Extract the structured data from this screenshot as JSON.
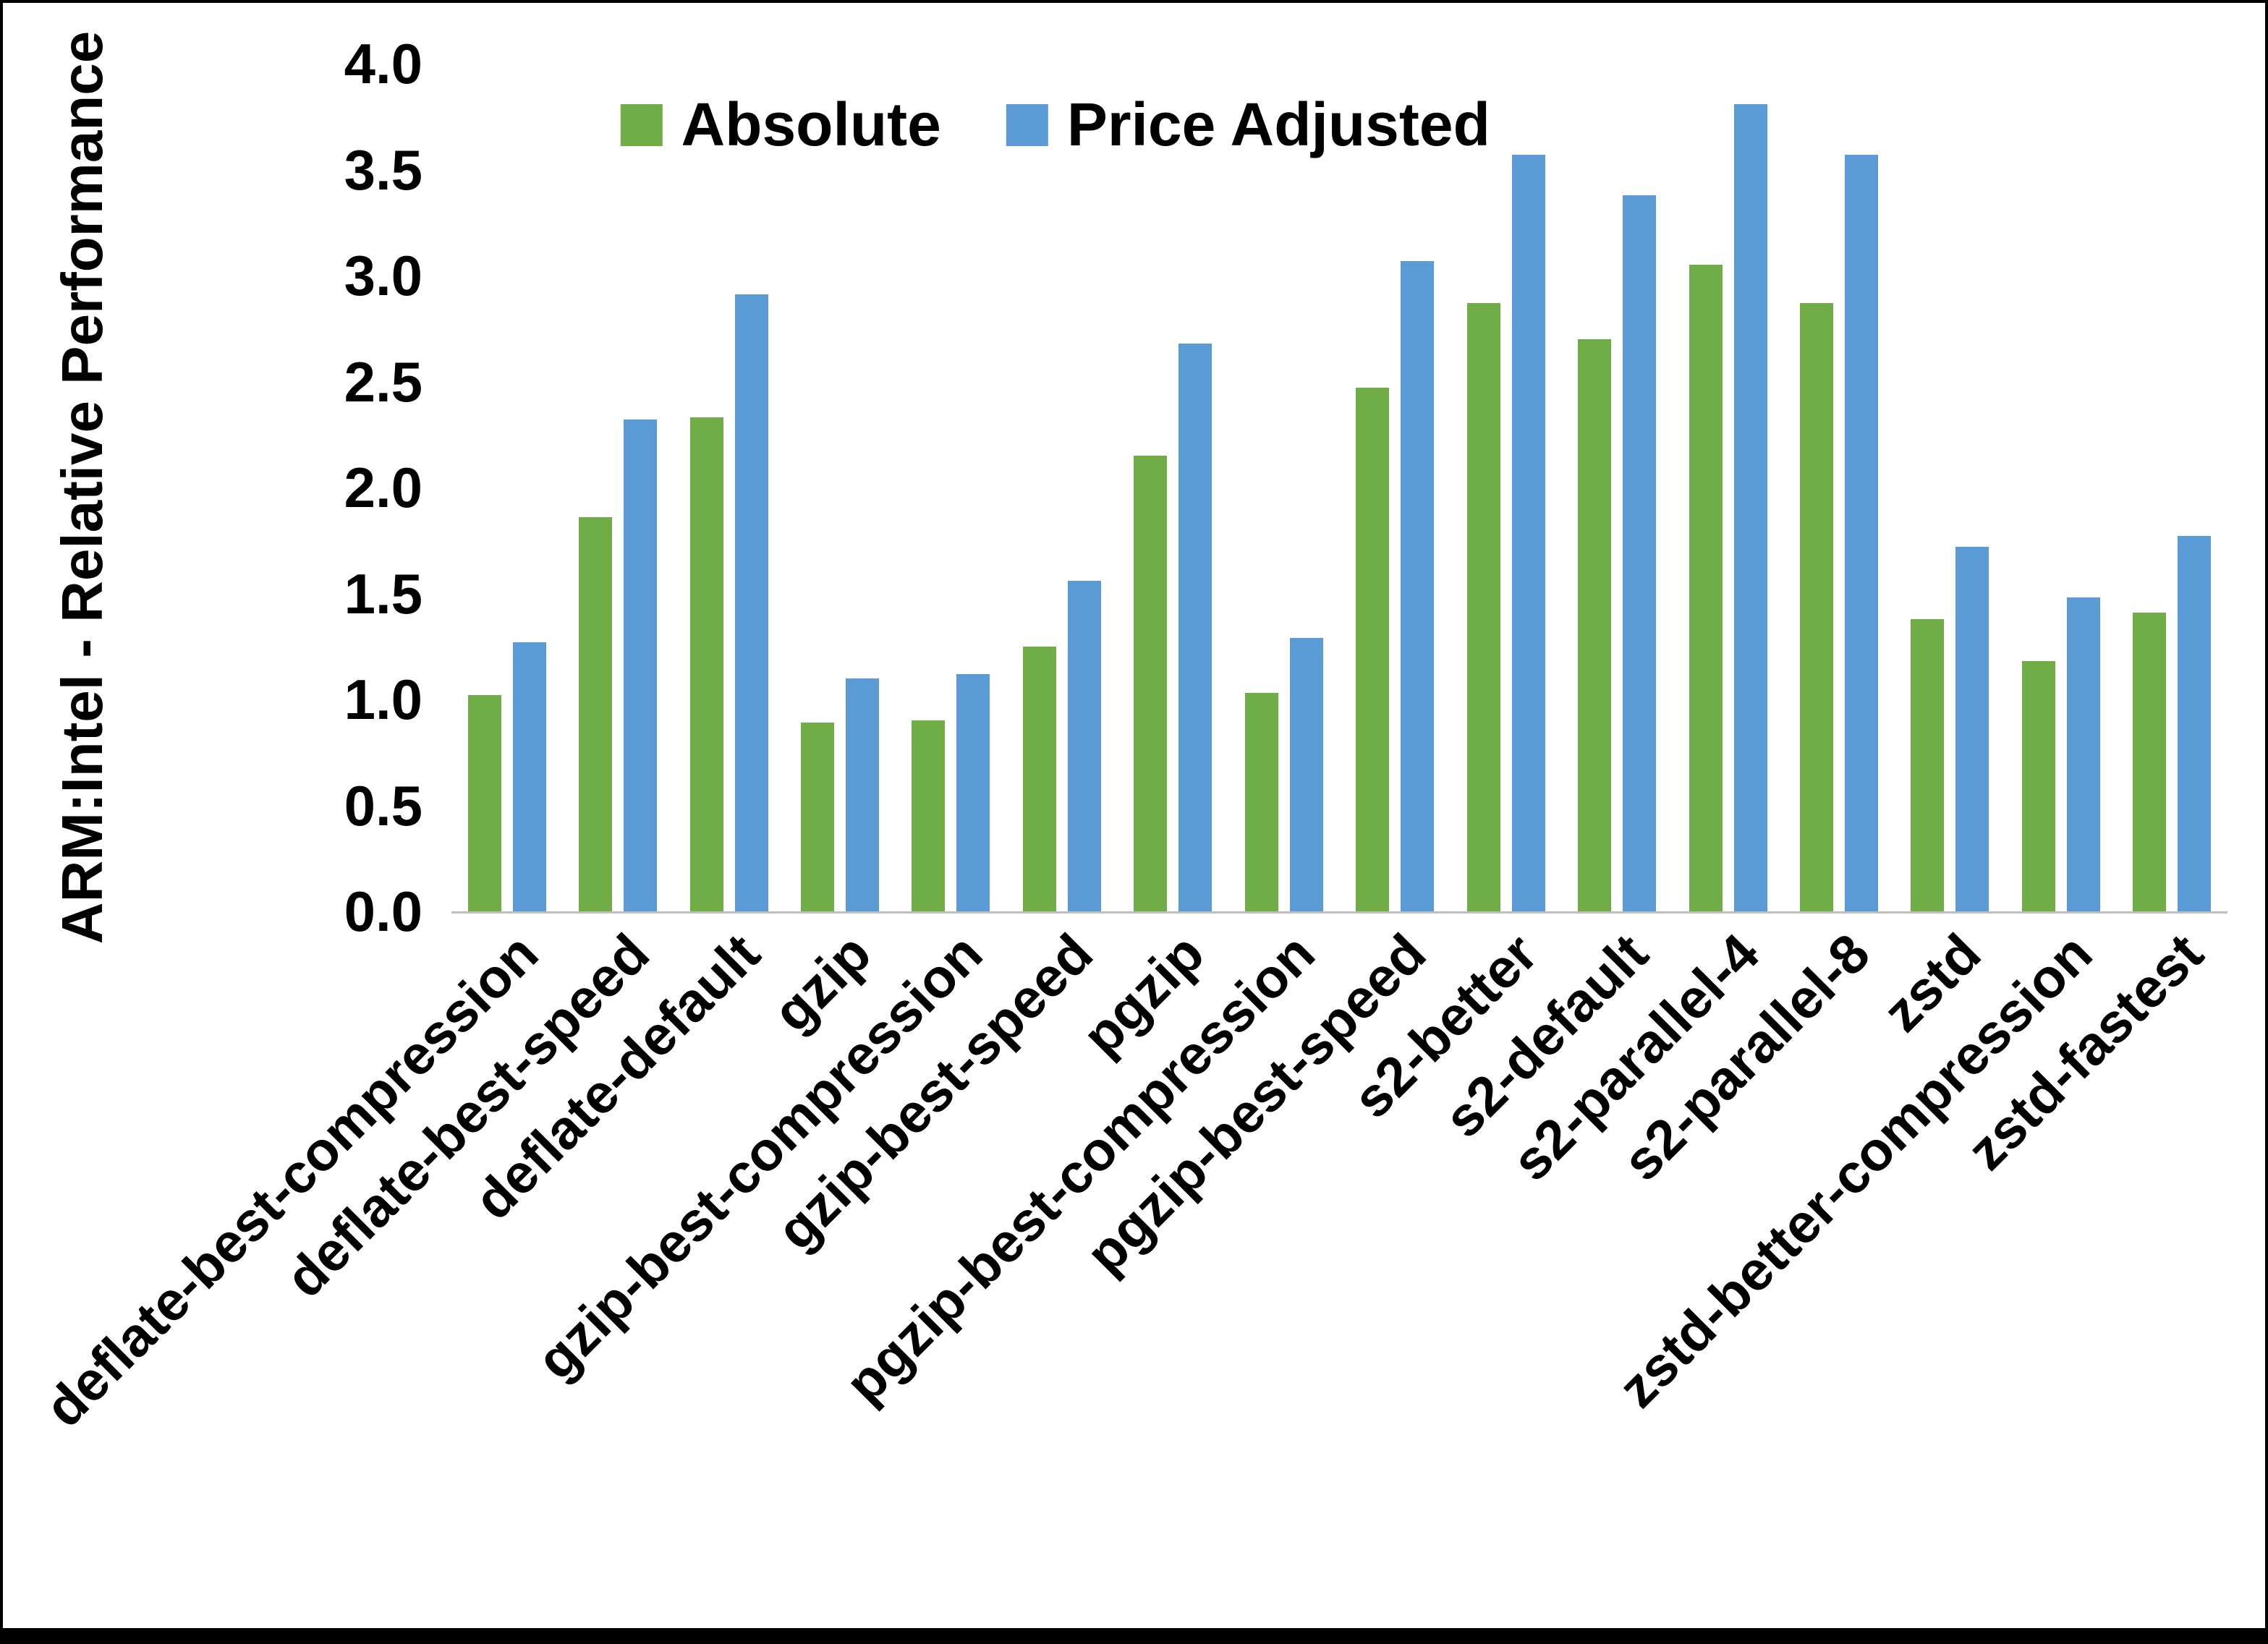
{
  "chart_data": {
    "type": "bar",
    "title": "",
    "xlabel": "",
    "ylabel": "ARM:Intel - Relative Performance",
    "ylim": [
      0,
      4.0
    ],
    "yticks": [
      "0.0",
      "0.5",
      "1.0",
      "1.5",
      "2.0",
      "2.5",
      "3.0",
      "3.5",
      "4.0"
    ],
    "grid": false,
    "legend_position": "top-center",
    "categories": [
      "deflate-best-compression",
      "deflate-best-speed",
      "deflate-default",
      "gzip",
      "gzip-best-compression",
      "gzip-best-speed",
      "pgzip",
      "pgzip-best-compression",
      "pgzip-best-speed",
      "s2-better",
      "s2-default",
      "s2-parallel-4",
      "s2-parallel-8",
      "zstd",
      "zstd-better-compression",
      "zstd-fastest"
    ],
    "series": [
      {
        "name": "Absolute",
        "color": "#70AD47",
        "values": [
          1.02,
          1.86,
          2.33,
          0.89,
          0.9,
          1.25,
          2.15,
          1.03,
          2.47,
          2.87,
          2.7,
          3.05,
          2.87,
          1.38,
          1.18,
          1.41
        ]
      },
      {
        "name": "Price Adjusted",
        "color": "#5B9BD5",
        "values": [
          1.27,
          2.32,
          2.91,
          1.1,
          1.12,
          1.56,
          2.68,
          1.29,
          3.07,
          3.57,
          3.38,
          3.81,
          3.57,
          1.72,
          1.48,
          1.77
        ]
      }
    ]
  }
}
